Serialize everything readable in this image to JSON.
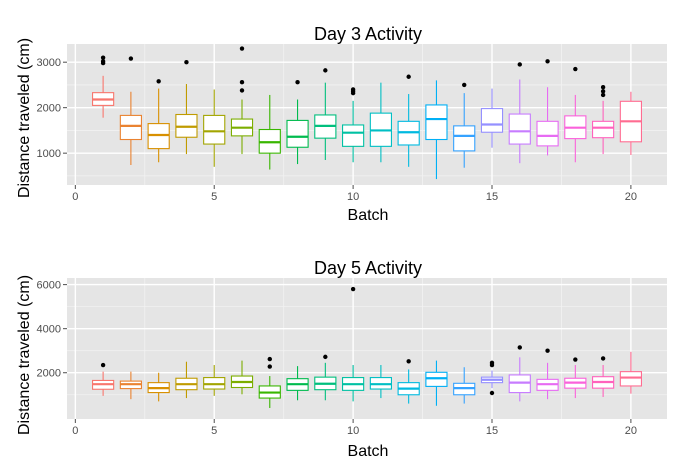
{
  "colors": {
    "panel_bg": "#e5e5e5",
    "grid_major": "#ffffff",
    "grid_minor": "#f2f2f2",
    "outlier": "#000000",
    "tick_text": "#4d4d4d"
  },
  "chart_data": [
    {
      "type": "boxplot",
      "title": "Day 3 Activity",
      "xlabel": "Batch",
      "ylabel": "Distance traveled (cm)",
      "xlim": [
        -0.3,
        21.3
      ],
      "ylim": [
        300,
        3400
      ],
      "x_ticks": [
        0,
        5,
        10,
        15,
        20
      ],
      "x_tick_labels": [
        "0",
        "5",
        "10",
        "15",
        "20"
      ],
      "y_ticks": [
        1000,
        2000,
        3000
      ],
      "y_tick_labels": [
        "1000",
        "2000",
        "3000"
      ],
      "legend": "none",
      "series": [
        {
          "batch": 1,
          "color": "#f8766d",
          "whisker_low": 1780,
          "q1": 2050,
          "median": 2180,
          "q3": 2330,
          "whisker_high": 2700,
          "outliers": [
            2980,
            3020,
            3100
          ]
        },
        {
          "batch": 2,
          "color": "#ea8331",
          "whisker_low": 740,
          "q1": 1300,
          "median": 1600,
          "q3": 1830,
          "whisker_high": 2350,
          "outliers": [
            3080
          ]
        },
        {
          "batch": 3,
          "color": "#d89000",
          "whisker_low": 800,
          "q1": 1100,
          "median": 1400,
          "q3": 1650,
          "whisker_high": 2420,
          "outliers": [
            2580
          ]
        },
        {
          "batch": 4,
          "color": "#c09b00",
          "whisker_low": 980,
          "q1": 1350,
          "median": 1580,
          "q3": 1850,
          "whisker_high": 2520,
          "outliers": [
            3000
          ]
        },
        {
          "batch": 5,
          "color": "#a3a500",
          "whisker_low": 700,
          "q1": 1200,
          "median": 1480,
          "q3": 1830,
          "whisker_high": 2400,
          "outliers": []
        },
        {
          "batch": 6,
          "color": "#7cae00",
          "whisker_low": 980,
          "q1": 1380,
          "median": 1560,
          "q3": 1750,
          "whisker_high": 2180,
          "outliers": [
            2380,
            2560,
            3300
          ]
        },
        {
          "batch": 7,
          "color": "#39b600",
          "whisker_low": 640,
          "q1": 1000,
          "median": 1240,
          "q3": 1520,
          "whisker_high": 2280,
          "outliers": []
        },
        {
          "batch": 8,
          "color": "#00bb4e",
          "whisker_low": 760,
          "q1": 1130,
          "median": 1360,
          "q3": 1720,
          "whisker_high": 2180,
          "outliers": [
            2560
          ]
        },
        {
          "batch": 9,
          "color": "#00bf7d",
          "whisker_low": 850,
          "q1": 1330,
          "median": 1600,
          "q3": 1840,
          "whisker_high": 2550,
          "outliers": [
            2820
          ]
        },
        {
          "batch": 10,
          "color": "#00c1a3",
          "whisker_low": 800,
          "q1": 1150,
          "median": 1450,
          "q3": 1620,
          "whisker_high": 2150,
          "outliers": [
            2320,
            2360,
            2400
          ]
        },
        {
          "batch": 11,
          "color": "#00bfc4",
          "whisker_low": 800,
          "q1": 1150,
          "median": 1500,
          "q3": 1880,
          "whisker_high": 2550,
          "outliers": []
        },
        {
          "batch": 12,
          "color": "#00bae0",
          "whisker_low": 700,
          "q1": 1180,
          "median": 1460,
          "q3": 1700,
          "whisker_high": 2300,
          "outliers": [
            2680
          ]
        },
        {
          "batch": 13,
          "color": "#00b0f6",
          "whisker_low": 430,
          "q1": 1300,
          "median": 1750,
          "q3": 2060,
          "whisker_high": 2600,
          "outliers": []
        },
        {
          "batch": 14,
          "color": "#35a2ff",
          "whisker_low": 680,
          "q1": 1050,
          "median": 1380,
          "q3": 1600,
          "whisker_high": 2320,
          "outliers": [
            2500
          ]
        },
        {
          "batch": 15,
          "color": "#9590ff",
          "whisker_low": 1120,
          "q1": 1460,
          "median": 1630,
          "q3": 1980,
          "whisker_high": 2420,
          "outliers": []
        },
        {
          "batch": 16,
          "color": "#c77cff",
          "whisker_low": 780,
          "q1": 1200,
          "median": 1480,
          "q3": 1860,
          "whisker_high": 2620,
          "outliers": [
            2950
          ]
        },
        {
          "batch": 17,
          "color": "#e76bf3",
          "whisker_low": 950,
          "q1": 1160,
          "median": 1380,
          "q3": 1700,
          "whisker_high": 2450,
          "outliers": [
            3020
          ]
        },
        {
          "batch": 18,
          "color": "#fa62db",
          "whisker_low": 800,
          "q1": 1320,
          "median": 1560,
          "q3": 1820,
          "whisker_high": 2280,
          "outliers": [
            2850
          ]
        },
        {
          "batch": 19,
          "color": "#ff62bc",
          "whisker_low": 980,
          "q1": 1340,
          "median": 1560,
          "q3": 1700,
          "whisker_high": 2150,
          "outliers": [
            2280,
            2360,
            2450
          ]
        },
        {
          "batch": 20,
          "color": "#ff6c91",
          "whisker_low": 960,
          "q1": 1250,
          "median": 1700,
          "q3": 2140,
          "whisker_high": 2350,
          "outliers": []
        }
      ]
    },
    {
      "type": "boxplot",
      "title": "Day 5 Activity",
      "xlabel": "Batch",
      "ylabel": "Distance traveled (cm)",
      "xlim": [
        -0.3,
        21.3
      ],
      "ylim": [
        -100,
        6300
      ],
      "x_ticks": [
        0,
        5,
        10,
        15,
        20
      ],
      "x_tick_labels": [
        "0",
        "5",
        "10",
        "15",
        "20"
      ],
      "y_ticks": [
        2000,
        4000,
        6000
      ],
      "y_tick_labels": [
        "2000",
        "4000",
        "6000"
      ],
      "legend": "none",
      "series": [
        {
          "batch": 1,
          "color": "#f8766d",
          "whisker_low": 950,
          "q1": 1250,
          "median": 1480,
          "q3": 1650,
          "whisker_high": 2050,
          "outliers": [
            2350
          ]
        },
        {
          "batch": 2,
          "color": "#ea8331",
          "whisker_low": 800,
          "q1": 1280,
          "median": 1480,
          "q3": 1620,
          "whisker_high": 2050,
          "outliers": []
        },
        {
          "batch": 3,
          "color": "#d89000",
          "whisker_low": 700,
          "q1": 1100,
          "median": 1300,
          "q3": 1550,
          "whisker_high": 2000,
          "outliers": []
        },
        {
          "batch": 4,
          "color": "#c09b00",
          "whisker_low": 850,
          "q1": 1230,
          "median": 1480,
          "q3": 1750,
          "whisker_high": 2500,
          "outliers": []
        },
        {
          "batch": 5,
          "color": "#a3a500",
          "whisker_low": 950,
          "q1": 1260,
          "median": 1480,
          "q3": 1780,
          "whisker_high": 2350,
          "outliers": []
        },
        {
          "batch": 6,
          "color": "#7cae00",
          "whisker_low": 1020,
          "q1": 1330,
          "median": 1580,
          "q3": 1850,
          "whisker_high": 2550,
          "outliers": []
        },
        {
          "batch": 7,
          "color": "#39b600",
          "whisker_low": 400,
          "q1": 850,
          "median": 1100,
          "q3": 1400,
          "whisker_high": 1850,
          "outliers": [
            2280,
            2620
          ]
        },
        {
          "batch": 8,
          "color": "#00bb4e",
          "whisker_low": 750,
          "q1": 1200,
          "median": 1480,
          "q3": 1730,
          "whisker_high": 2300,
          "outliers": []
        },
        {
          "batch": 9,
          "color": "#00bf7d",
          "whisker_low": 750,
          "q1": 1230,
          "median": 1500,
          "q3": 1800,
          "whisker_high": 2450,
          "outliers": [
            2720
          ]
        },
        {
          "batch": 10,
          "color": "#00c1a3",
          "whisker_low": 700,
          "q1": 1200,
          "median": 1480,
          "q3": 1780,
          "whisker_high": 2350,
          "outliers": [
            5800
          ]
        },
        {
          "batch": 11,
          "color": "#00bfc4",
          "whisker_low": 850,
          "q1": 1260,
          "median": 1480,
          "q3": 1780,
          "whisker_high": 2350,
          "outliers": []
        },
        {
          "batch": 12,
          "color": "#00bae0",
          "whisker_low": 600,
          "q1": 1000,
          "median": 1280,
          "q3": 1550,
          "whisker_high": 2150,
          "outliers": [
            2520
          ]
        },
        {
          "batch": 13,
          "color": "#00b0f6",
          "whisker_low": 500,
          "q1": 1380,
          "median": 1750,
          "q3": 2020,
          "whisker_high": 2550,
          "outliers": []
        },
        {
          "batch": 14,
          "color": "#35a2ff",
          "whisker_low": 600,
          "q1": 1000,
          "median": 1300,
          "q3": 1520,
          "whisker_high": 2250,
          "outliers": []
        },
        {
          "batch": 15,
          "color": "#9590ff",
          "whisker_low": 1300,
          "q1": 1550,
          "median": 1680,
          "q3": 1800,
          "whisker_high": 2100,
          "outliers": [
            1080,
            2350,
            2450
          ]
        },
        {
          "batch": 16,
          "color": "#c77cff",
          "whisker_low": 700,
          "q1": 1100,
          "median": 1550,
          "q3": 1900,
          "whisker_high": 2700,
          "outliers": [
            3150
          ]
        },
        {
          "batch": 17,
          "color": "#e76bf3",
          "whisker_low": 800,
          "q1": 1200,
          "median": 1480,
          "q3": 1700,
          "whisker_high": 2450,
          "outliers": [
            3000
          ]
        },
        {
          "batch": 18,
          "color": "#fa62db",
          "whisker_low": 850,
          "q1": 1300,
          "median": 1550,
          "q3": 1750,
          "whisker_high": 2350,
          "outliers": [
            2600
          ]
        },
        {
          "batch": 19,
          "color": "#ff62bc",
          "whisker_low": 900,
          "q1": 1300,
          "median": 1580,
          "q3": 1820,
          "whisker_high": 2350,
          "outliers": [
            2650
          ]
        },
        {
          "batch": 20,
          "color": "#ff6c91",
          "whisker_low": 1050,
          "q1": 1400,
          "median": 1780,
          "q3": 2050,
          "whisker_high": 2950,
          "outliers": []
        }
      ]
    }
  ]
}
